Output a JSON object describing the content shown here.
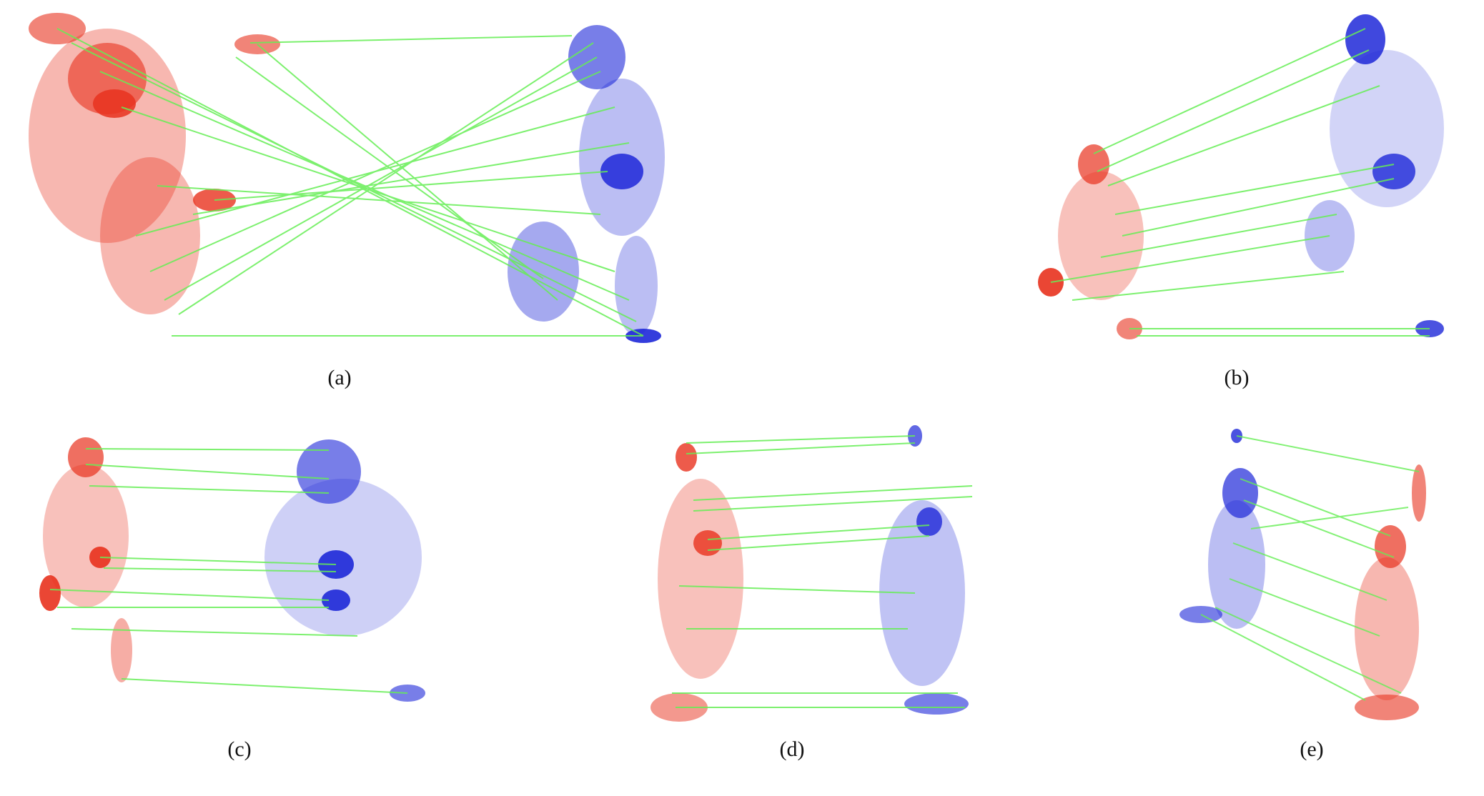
{
  "figure": {
    "panels": [
      {
        "id": "a",
        "caption": "(a)"
      },
      {
        "id": "b",
        "caption": "(b)"
      },
      {
        "id": "c",
        "caption": "(c)"
      },
      {
        "id": "d",
        "caption": "(d)"
      },
      {
        "id": "e",
        "caption": "(e)"
      }
    ],
    "colors": {
      "source_cloud": "#e8321e",
      "target_cloud": "#1e28d8",
      "correspondence_line": "#66ee55"
    }
  }
}
